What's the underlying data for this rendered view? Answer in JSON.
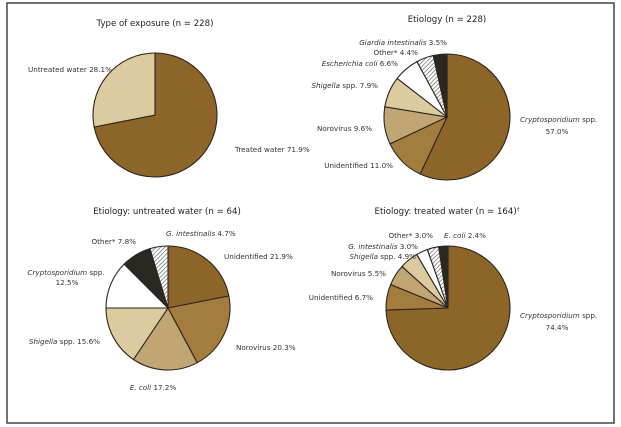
{
  "chart_data": [
    {
      "type": "pie",
      "title": "Type of exposure (n = 228)",
      "slices": [
        {
          "label": "Treated water",
          "italic": false,
          "value": 71.9,
          "color": "#8e6528"
        },
        {
          "label": "Untreated water",
          "italic": false,
          "value": 28.1,
          "color": "#dccb9f"
        }
      ]
    },
    {
      "type": "pie",
      "title": "Etiology (n = 228)",
      "slices": [
        {
          "label": "Cryptosporidium",
          "suffix": " spp.",
          "italic": true,
          "value": 57.0,
          "color": "#8e6528"
        },
        {
          "label": "Unidentified",
          "italic": false,
          "value": 11.0,
          "color": "#a47c3e"
        },
        {
          "label": "Norovirus",
          "italic": false,
          "value": 9.6,
          "color": "#c1a674"
        },
        {
          "label": "Shigella",
          "suffix": " spp.",
          "italic": true,
          "value": 7.9,
          "color": "#dccb9f"
        },
        {
          "label": "Escherichia coli",
          "italic": true,
          "value": 6.6,
          "color": "#ffffff"
        },
        {
          "label": "Other*",
          "italic": false,
          "value": 4.4,
          "color": "hatch"
        },
        {
          "label": "Giardia intestinalis",
          "italic": true,
          "value": 3.5,
          "color": "#2b2822"
        }
      ]
    },
    {
      "type": "pie",
      "title": "Etiology: untreated water (n = 64)",
      "slices": [
        {
          "label": "Unidentified",
          "italic": false,
          "value": 21.9,
          "color": "#8e6528"
        },
        {
          "label": "Norovirus",
          "italic": false,
          "value": 20.3,
          "color": "#a47c3e"
        },
        {
          "label": "E. coli",
          "italic": true,
          "value": 17.2,
          "color": "#c1a674"
        },
        {
          "label": "Shigella",
          "suffix": " spp.",
          "italic": true,
          "value": 15.6,
          "color": "#dccb9f"
        },
        {
          "label": "Cryptosporidium",
          "suffix": " spp.",
          "italic": true,
          "value": 12.5,
          "color": "#ffffff"
        },
        {
          "label": "Other*",
          "italic": false,
          "value": 7.8,
          "color": "#2b2822"
        },
        {
          "label": "G. intestinalis",
          "italic": true,
          "value": 4.7,
          "color": "hatch"
        }
      ]
    },
    {
      "type": "pie",
      "title": "Etiology: treated water (n = 164)",
      "title_sup": "†",
      "slices": [
        {
          "label": "Cryptosporidium",
          "suffix": " spp.",
          "italic": true,
          "value": 74.4,
          "color": "#8e6528"
        },
        {
          "label": "Unidentified",
          "italic": false,
          "value": 6.7,
          "color": "#a47c3e"
        },
        {
          "label": "Norovirus",
          "italic": false,
          "value": 5.5,
          "color": "#c1a674"
        },
        {
          "label": "Shigella",
          "suffix": " spp.",
          "italic": true,
          "value": 4.9,
          "color": "#dccb9f"
        },
        {
          "label": "G. intestinalis",
          "italic": true,
          "value": 3.0,
          "color": "#ffffff"
        },
        {
          "label": "Other*",
          "italic": false,
          "value": 3.0,
          "color": "hatch"
        },
        {
          "label": "E. coli",
          "italic": true,
          "value": 2.4,
          "color": "#2b2822"
        }
      ]
    }
  ]
}
